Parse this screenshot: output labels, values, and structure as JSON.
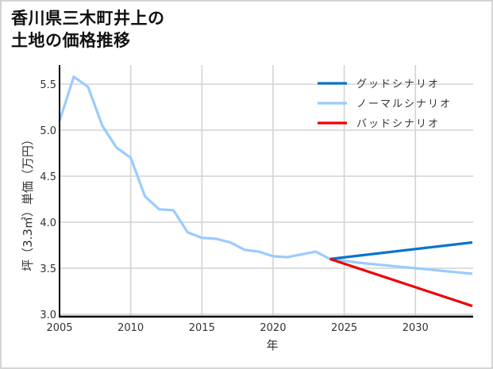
{
  "title_line1": "香川県三木町井上の",
  "title_line2": "土地の価格推移",
  "colors": {
    "good": "#0a74cc",
    "normal": "#99ccff",
    "bad": "#ee0000",
    "grid": "#d3d3d3",
    "axis": "#000000",
    "border": "#d4d4d4"
  },
  "chart_data": {
    "type": "line",
    "title": "香川県三木町井上の土地の価格推移",
    "xlabel": "年",
    "ylabel": "坪（3.3㎡）単価（万円）",
    "xlim": [
      2005,
      2034
    ],
    "ylim": [
      2.97,
      5.71
    ],
    "x_ticks": [
      "2005",
      "2010",
      "2015",
      "2020",
      "2025",
      "2030"
    ],
    "y_ticks": [
      "3.0",
      "3.5",
      "4.0",
      "4.5",
      "5.0",
      "5.5"
    ],
    "grid": true,
    "legend_position": "upper right",
    "legend": [
      "グッドシナリオ",
      "ノーマルシナリオ",
      "バッドシナリオ"
    ],
    "series": [
      {
        "name": "ノーマルシナリオ",
        "color": "#99ccff",
        "x": [
          2005,
          2006,
          2007,
          2008,
          2009,
          2010,
          2011,
          2012,
          2013,
          2014,
          2015,
          2016,
          2017,
          2018,
          2019,
          2020,
          2021,
          2022,
          2023,
          2024,
          2025,
          2026,
          2027,
          2028,
          2029,
          2030,
          2031,
          2032,
          2033,
          2034
        ],
        "values": [
          5.1,
          5.58,
          5.47,
          5.05,
          4.81,
          4.7,
          4.28,
          4.14,
          4.13,
          3.89,
          3.83,
          3.82,
          3.78,
          3.7,
          3.68,
          3.63,
          3.62,
          3.65,
          3.68,
          3.6,
          3.58,
          3.56,
          3.545,
          3.53,
          3.515,
          3.5,
          3.485,
          3.47,
          3.455,
          3.44
        ]
      },
      {
        "name": "グッドシナリオ",
        "color": "#0a74cc",
        "x": [
          2024,
          2034
        ],
        "values": [
          3.6,
          3.78
        ]
      },
      {
        "name": "バッドシナリオ",
        "color": "#ee0000",
        "x": [
          2024,
          2034
        ],
        "values": [
          3.6,
          3.09
        ]
      }
    ]
  }
}
